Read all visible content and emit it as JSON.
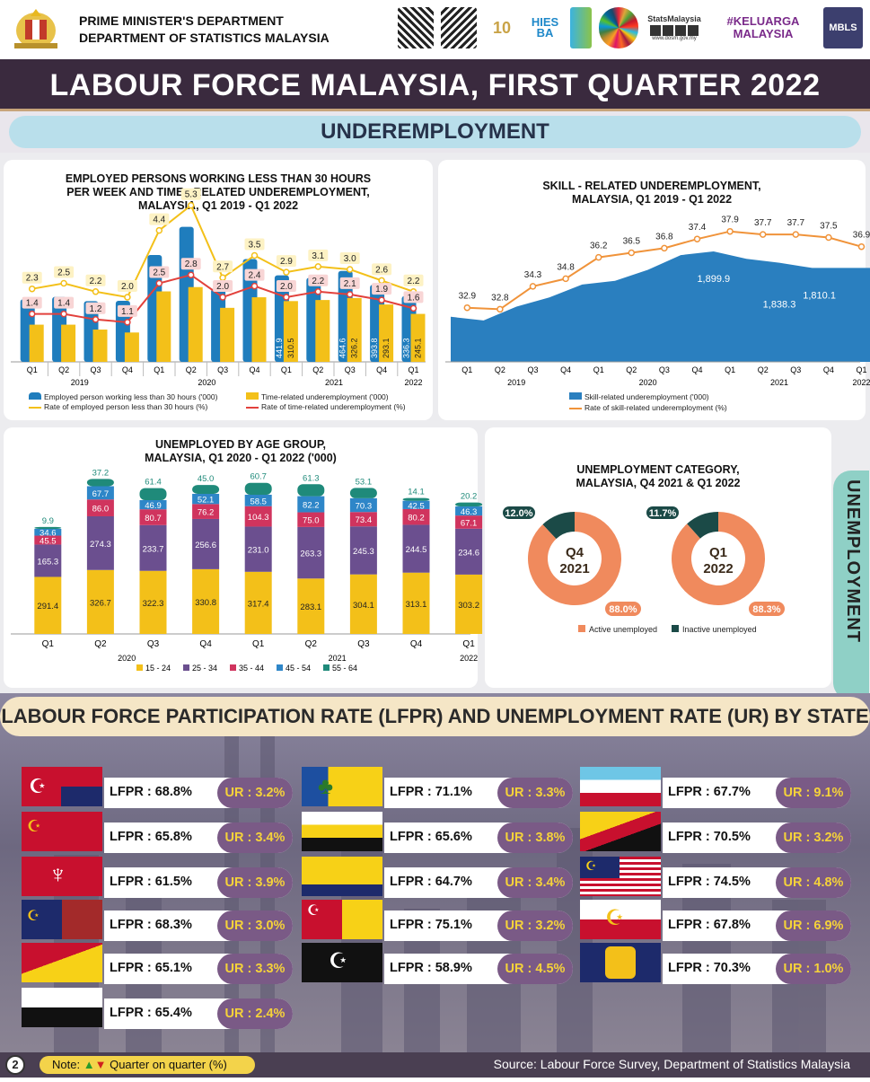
{
  "header": {
    "org_line1": "PRIME MINISTER'S DEPARTMENT",
    "org_line2": "DEPARTMENT OF STATISTICS MALAYSIA",
    "logos": [
      "qr-code",
      "qr-code",
      "10th anniversary logo",
      "HIES BA 2022 logo",
      "BPS logo",
      "SDG logo",
      "StatsMalaysia social",
      "#KELUARGA MALAYSIA",
      "MBLS"
    ],
    "stats_label": "StatsMalaysia",
    "url": "www.dosm.gov.my",
    "keluarga": "#KELUARGA MALAYSIA",
    "mbls": "MBLS"
  },
  "title": "LABOUR FORCE MALAYSIA, FIRST QUARTER 2022",
  "section": "UNDEREMPLOYMENT",
  "chart1": {
    "title": [
      "EMPLOYED PERSONS WORKING  LESS THAN 30 HOURS",
      "PER WEEK AND TIME - RELATED UNDEREMPLOYMENT,",
      "MALAYSIA, Q1 2019 - Q1 2022"
    ],
    "legend": [
      "Employed person working less than 30 hours ('000)",
      "Time-related underemployment ('000)",
      "Rate of employed person less than 30 hours (%)",
      "Rate of time-related underemployment (%)"
    ]
  },
  "chart2": {
    "title": [
      "SKILL - RELATED UNDEREMPLOYMENT,",
      "MALAYSIA, Q1 2019 - Q1 2022"
    ],
    "legend": [
      "Skill-related underemployment ('000)",
      "Rate of skill-related underemployment (%)"
    ]
  },
  "chart3": {
    "title": [
      "UNEMPLOYED BY AGE GROUP,",
      "MALAYSIA, Q1 2020 - Q1 2022 ('000)"
    ],
    "legend": [
      "15 - 24",
      "25 - 34",
      "35 - 44",
      "45 - 54",
      "55 - 64"
    ]
  },
  "chart4": {
    "title": [
      "UNEMPLOYMENT CATEGORY,",
      "MALAYSIA, Q4 2021 & Q1 2022"
    ],
    "legend": [
      "Active unemployed",
      "Inactive unemployed"
    ]
  },
  "unemployment_tab": "UNEMPLOYMENT",
  "lfpr_title": "LABOUR FORCE PARTICIPATION RATE (LFPR) AND UNEMPLOYMENT RATE (UR) BY STATE",
  "states": [
    {
      "lfpr": "LFPR : 68.8%",
      "ur": "UR : 3.2%",
      "up": false
    },
    {
      "lfpr": "LFPR : 65.8%",
      "ur": "UR : 3.4%",
      "up": false
    },
    {
      "lfpr": "LFPR : 61.5%",
      "ur": "UR : 3.9%",
      "up": false
    },
    {
      "lfpr": "LFPR : 68.3%",
      "ur": "UR : 3.0%",
      "up": false
    },
    {
      "lfpr": "LFPR : 65.1%",
      "ur": "UR : 3.3%",
      "up": false
    },
    {
      "lfpr": "LFPR : 65.4%",
      "ur": "UR : 2.4%",
      "up": false
    },
    {
      "lfpr": "LFPR : 71.1%",
      "ur": "UR : 3.3%",
      "up": false
    },
    {
      "lfpr": "LFPR : 65.6%",
      "ur": "UR : 3.8%",
      "up": false
    },
    {
      "lfpr": "LFPR : 64.7%",
      "ur": "UR : 3.4%",
      "up": false
    },
    {
      "lfpr": "LFPR : 75.1%",
      "ur": "UR : 3.2%",
      "up": false
    },
    {
      "lfpr": "LFPR : 58.9%",
      "ur": "UR : 4.5%",
      "up": false
    },
    {
      "lfpr": "LFPR : 67.7%",
      "ur": "UR : 9.1%",
      "up": false
    },
    {
      "lfpr": "LFPR : 70.5%",
      "ur": "UR : 3.2%",
      "up": false
    },
    {
      "lfpr": "LFPR : 74.5%",
      "ur": "UR : 4.8%",
      "up": false
    },
    {
      "lfpr": "LFPR : 67.8%",
      "ur": "UR : 6.9%",
      "up": false
    },
    {
      "lfpr": "LFPR : 70.3%",
      "ur": "UR : 1.0%",
      "up": false
    }
  ],
  "footer": {
    "page": "2",
    "note": "Note:",
    "note2": "Quarter on quarter (%)",
    "source": "Source: Labour Force Survey, Department of Statistics Malaysia"
  },
  "chart_data": [
    {
      "type": "bar",
      "categories": [
        "Q1",
        "Q2",
        "Q3",
        "Q4",
        "Q1",
        "Q2",
        "Q3",
        "Q4",
        "Q1",
        "Q2",
        "Q3",
        "Q4",
        "Q1"
      ],
      "year_labels": [
        "2019",
        "2020",
        "2021",
        "2022"
      ],
      "series": [
        {
          "name": "Employed person working less than 30 hours ('000)",
          "values": [
            320,
            332,
            310,
            312,
            546,
            690,
            374,
            525,
            441.9,
            430,
            464.6,
            393.8,
            336.3
          ],
          "labels": [
            "",
            "",
            "",
            "",
            "",
            "",
            "",
            "",
            "441.9",
            "",
            "464.6",
            "393.8",
            "336.3"
          ]
        },
        {
          "name": "Time-related underemployment ('000)",
          "values": [
            190,
            190,
            165,
            150,
            360,
            382,
            276,
            330,
            310.5,
            316,
            326.2,
            293.1,
            245.1
          ],
          "labels": [
            "",
            "",
            "",
            "",
            "",
            "",
            "",
            "",
            "310.5",
            "",
            "326.2",
            "293.1",
            "245.1"
          ]
        },
        {
          "name": "Rate of employed person less than 30 hours (%)",
          "values": [
            2.3,
            2.5,
            2.2,
            2.0,
            4.4,
            5.3,
            2.7,
            3.5,
            2.9,
            3.1,
            3.0,
            2.6,
            2.2
          ]
        },
        {
          "name": "Rate of time-related underemployment (%)",
          "values": [
            1.4,
            1.4,
            1.2,
            1.1,
            2.5,
            2.8,
            2.0,
            2.4,
            2.0,
            2.2,
            2.1,
            1.9,
            1.6
          ]
        }
      ]
    },
    {
      "type": "area",
      "categories": [
        "Q1",
        "Q2",
        "Q3",
        "Q4",
        "Q1",
        "Q2",
        "Q3",
        "Q4",
        "Q1",
        "Q2",
        "Q3",
        "Q4",
        "Q1"
      ],
      "year_labels": [
        "2019",
        "2020",
        "2021",
        "2022"
      ],
      "series": [
        {
          "name": "Skill-related underemployment ('000)",
          "values": [
            1545,
            1525,
            1600,
            1650,
            1720,
            1740,
            1800,
            1880,
            1899.9,
            1860,
            1838.3,
            1810.1,
            1810.1
          ],
          "labels": [
            "",
            "",
            "",
            "",
            "",
            "",
            "",
            "",
            "1,899.9",
            "",
            "1,838.3",
            "1,810.1",
            ""
          ]
        },
        {
          "name": "Rate of skill-related underemployment (%)",
          "values": [
            32.9,
            32.8,
            34.3,
            34.8,
            36.2,
            36.5,
            36.8,
            37.4,
            37.9,
            37.7,
            37.7,
            37.5,
            36.9
          ]
        }
      ]
    },
    {
      "type": "bar",
      "stacked": true,
      "categories": [
        "Q1",
        "Q2",
        "Q3",
        "Q4",
        "Q1",
        "Q2",
        "Q3",
        "Q4",
        "Q1"
      ],
      "year_labels": [
        "2020",
        "2021",
        "2022"
      ],
      "series": [
        {
          "name": "15 - 24",
          "values": [
            291.4,
            326.7,
            322.3,
            330.8,
            317.4,
            283.1,
            304.1,
            313.1,
            303.2
          ]
        },
        {
          "name": "25 - 34",
          "values": [
            165.3,
            274.3,
            233.7,
            256.6,
            231.0,
            263.3,
            245.3,
            244.5,
            234.6
          ]
        },
        {
          "name": "35 - 44",
          "values": [
            45.5,
            86.0,
            80.7,
            76.2,
            104.3,
            75.0,
            73.4,
            80.2,
            67.1
          ]
        },
        {
          "name": "45 - 54",
          "values": [
            34.6,
            67.7,
            46.9,
            52.1,
            58.5,
            82.2,
            70.3,
            42.5,
            46.3
          ]
        },
        {
          "name": "55 - 64",
          "values": [
            9.9,
            37.2,
            61.4,
            45.0,
            60.7,
            61.3,
            53.1,
            14.1,
            20.2
          ]
        }
      ]
    },
    {
      "type": "pie",
      "charts": [
        {
          "label": "Q4 2021",
          "active": 88.0,
          "inactive": 12.0,
          "active_label": "88.0%",
          "inactive_label": "12.0%",
          "center": [
            "Q4",
            "2021"
          ]
        },
        {
          "label": "Q1 2022",
          "active": 88.3,
          "inactive": 11.7,
          "active_label": "88.3%",
          "inactive_label": "11.7%",
          "center": [
            "Q1",
            "2022"
          ]
        }
      ]
    }
  ]
}
